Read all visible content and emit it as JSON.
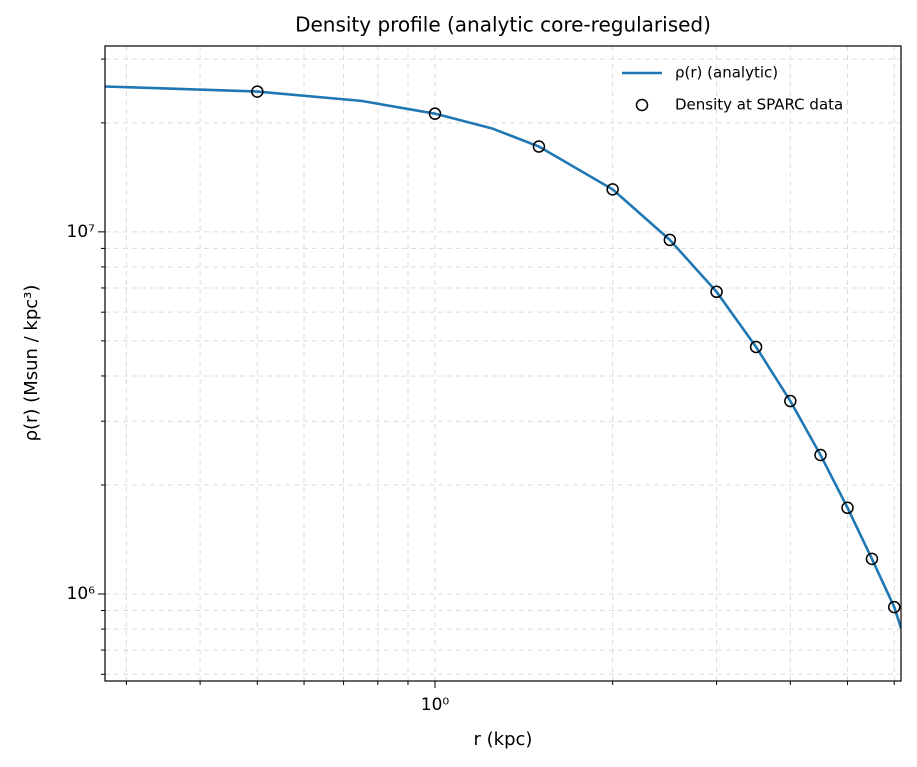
{
  "chart_data": {
    "type": "line",
    "title": "Density profile (analytic core-regularised)",
    "xlabel": "r (kpc)",
    "ylabel": "ρ(r) (Msun / kpc³)",
    "xscale": "log",
    "yscale": "log",
    "xlim": [
      0.276,
      6.16
    ],
    "ylim": [
      575000,
      32600000
    ],
    "xticks": [
      {
        "value": 1,
        "label": "10⁰"
      }
    ],
    "xticks_minor": [
      0.3,
      0.4,
      0.5,
      0.6,
      0.7,
      0.8,
      0.9,
      2,
      3,
      4,
      5,
      6
    ],
    "yticks": [
      {
        "value": 1000000,
        "label": "10⁶"
      },
      {
        "value": 10000000,
        "label": "10⁷"
      }
    ],
    "yticks_minor": [
      600000,
      700000,
      800000,
      900000,
      2000000,
      3000000,
      4000000,
      5000000,
      6000000,
      7000000,
      8000000,
      9000000,
      20000000,
      30000000
    ],
    "grid": true,
    "legend": "upper right",
    "series": [
      {
        "name": "ρ(r) (analytic)",
        "color": "#1f77b4",
        "type": "line",
        "x": [
          0.276,
          0.5,
          0.75,
          1,
          1.25,
          1.5,
          2,
          2.5,
          3,
          3.5,
          4,
          4.5,
          5,
          5.5,
          6,
          6.16
        ],
        "values": [
          25200000,
          24400000,
          23000000,
          21200000,
          19300000,
          17200000,
          13100000,
          9500000,
          6830000,
          4810000,
          3410000,
          2420000,
          1730000,
          1250000,
          920000,
          805000
        ]
      },
      {
        "name": "Density at SPARC data",
        "color": "#000000",
        "type": "scatter",
        "x": [
          0.5,
          1,
          1.5,
          2,
          2.5,
          3,
          3.5,
          4,
          4.5,
          5,
          5.5,
          6
        ],
        "values": [
          24400000,
          21200000,
          17200000,
          13100000,
          9500000,
          6830000,
          4810000,
          3410000,
          2420000,
          1730000,
          1250000,
          920000
        ]
      }
    ]
  }
}
